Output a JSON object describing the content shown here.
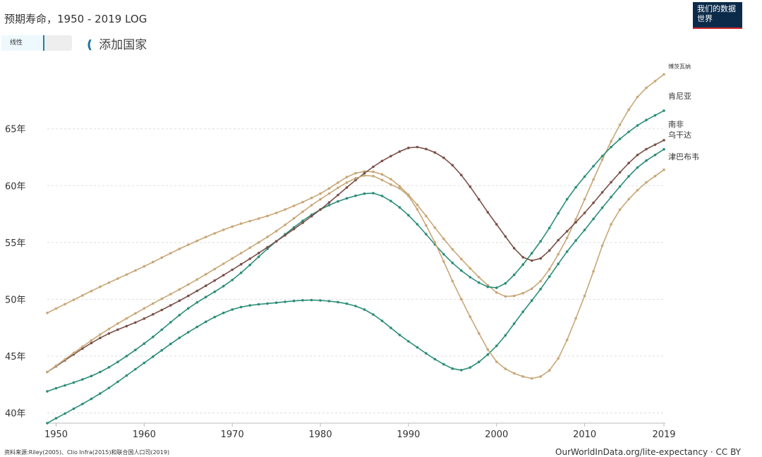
{
  "header": {
    "title": "预期寿命，1950 - 2019 LOG",
    "logo_text": "我们的数据世界",
    "scale_toggle_label": "线性",
    "add_country_label": "添加国家"
  },
  "footer": {
    "source": "资料来源:Riley(2005)、Clio Infra(2015)和联合国人口司(2019)",
    "url": "OurWorldInData.org/lite-expectancy · CC BY"
  },
  "chart_data": {
    "type": "line",
    "title": "预期寿命，1950 - 2019 LOG",
    "xlim": [
      1949,
      2019
    ],
    "ylim": [
      39.1,
      71.5
    ],
    "x_ticks": [
      1950,
      1960,
      1970,
      1980,
      1990,
      2000,
      2010,
      2019
    ],
    "y_ticks": [
      40,
      45,
      50,
      55,
      60,
      65
    ],
    "y_tick_labels": [
      "40年",
      "45年",
      "50年",
      "55年",
      "60年",
      "65年"
    ],
    "grid": true,
    "colors": {
      "gold": "#c8a777",
      "teal": "#2b8d78",
      "brown": "#7a5048",
      "grid": "#dddddd"
    },
    "series": [
      {
        "name": "博茨瓦纳",
        "color": "#c8a777",
        "x": [
          1949,
          1955,
          1960,
          1965,
          1970,
          1975,
          1980,
          1984,
          1987,
          1990,
          1995,
          2000,
          2002,
          2005,
          2008,
          2010,
          2013,
          2016,
          2019
        ],
        "y": [
          48.8,
          51.1,
          52.9,
          54.8,
          56.4,
          57.6,
          59.3,
          61.1,
          61.0,
          59.2,
          54.4,
          50.6,
          50.3,
          51.6,
          55.4,
          58.8,
          63.9,
          67.8,
          69.8
        ]
      },
      {
        "name": "肯尼亚",
        "color": "#2b8d78",
        "x": [
          1949,
          1955,
          1960,
          1965,
          1970,
          1975,
          1980,
          1985,
          1987,
          1990,
          1995,
          1999,
          2001,
          2005,
          2008,
          2010,
          2013,
          2016,
          2019
        ],
        "y": [
          41.9,
          43.6,
          46.1,
          49.2,
          51.7,
          55.1,
          57.9,
          59.3,
          59.1,
          57.4,
          53.2,
          51.1,
          51.4,
          55.1,
          58.8,
          60.8,
          63.4,
          65.3,
          66.6
        ]
      },
      {
        "name": "南非",
        "color": "#7a5048",
        "x": [
          1949,
          1955,
          1960,
          1965,
          1970,
          1975,
          1980,
          1985,
          1988,
          1991,
          1995,
          2000,
          2003,
          2005,
          2007,
          2010,
          2013,
          2016,
          2019
        ],
        "y": [
          43.6,
          46.6,
          48.3,
          50.3,
          52.6,
          55.1,
          57.9,
          61.1,
          62.6,
          63.4,
          61.8,
          56.6,
          53.7,
          53.6,
          55.2,
          57.6,
          60.3,
          62.7,
          64.0
        ]
      },
      {
        "name": "乌干达",
        "color": "#2b8d78",
        "x": [
          1949,
          1955,
          1960,
          1965,
          1970,
          1975,
          1980,
          1985,
          1990,
          1995,
          1997,
          2000,
          2003,
          2005,
          2008,
          2010,
          2013,
          2016,
          2019
        ],
        "y": [
          39.1,
          41.7,
          44.4,
          47.1,
          49.1,
          49.7,
          49.9,
          49.1,
          46.3,
          43.9,
          44.0,
          45.9,
          48.9,
          50.9,
          54.2,
          56.1,
          59.0,
          61.6,
          63.2
        ]
      },
      {
        "name": "津巴布韦",
        "color": "#c8a777",
        "x": [
          1949,
          1955,
          1960,
          1965,
          1970,
          1975,
          1980,
          1985,
          1988,
          1990,
          1993,
          1995,
          1998,
          2000,
          2003,
          2005,
          2007,
          2010,
          2013,
          2016,
          2019
        ],
        "y": [
          43.6,
          46.9,
          49.2,
          51.3,
          53.6,
          56.0,
          58.8,
          60.9,
          60.1,
          59.1,
          55.0,
          51.6,
          47.0,
          44.5,
          43.2,
          43.2,
          44.8,
          50.3,
          56.6,
          59.6,
          61.4
        ]
      }
    ]
  }
}
